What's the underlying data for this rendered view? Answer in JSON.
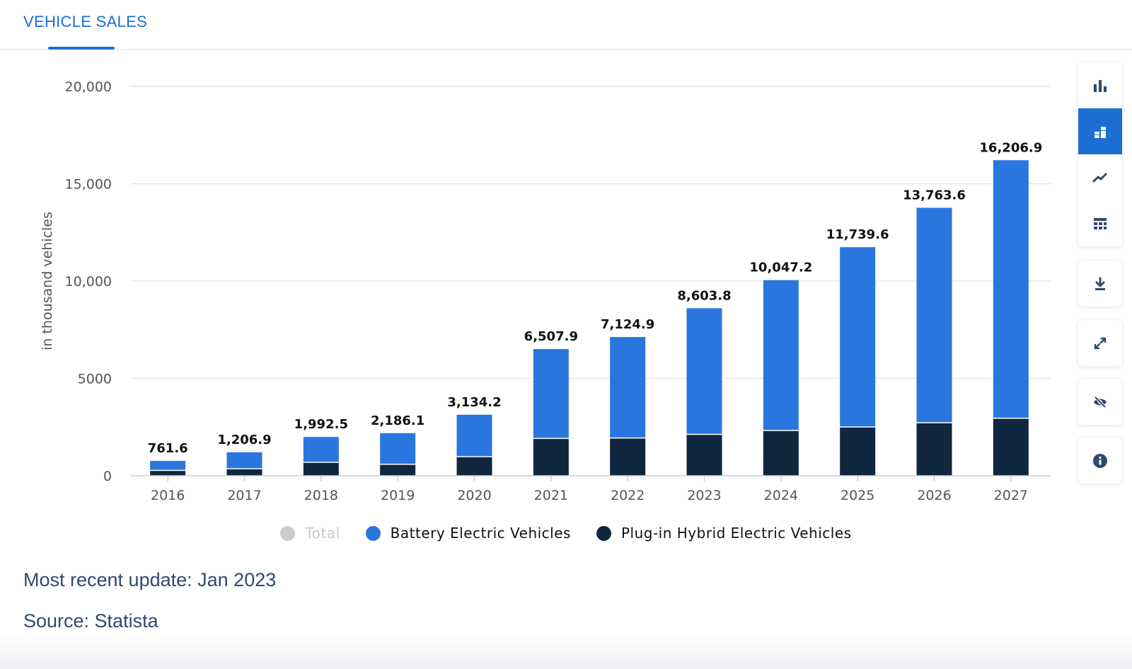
{
  "tab": {
    "label": "VEHICLE SALES"
  },
  "toolbar": {
    "chart_types": [
      {
        "name": "column-chart-icon",
        "active": false
      },
      {
        "name": "stacked-column-icon",
        "active": true
      },
      {
        "name": "line-chart-icon",
        "active": false
      },
      {
        "name": "table-icon",
        "active": false
      }
    ],
    "actions": [
      "download-icon",
      "fullscreen-icon",
      "hide-icon",
      "info-icon"
    ]
  },
  "colors": {
    "bev": "#2977de",
    "phev": "#11263f",
    "total": "#cccccc",
    "accent": "#1a6fd1"
  },
  "chart_data": {
    "type": "bar",
    "stacked": true,
    "categories": [
      "2016",
      "2017",
      "2018",
      "2019",
      "2020",
      "2021",
      "2022",
      "2023",
      "2024",
      "2025",
      "2026",
      "2027"
    ],
    "series": [
      {
        "name": "Battery Electric Vehicles",
        "color": "#2977de",
        "values": [
          515,
          877,
          1330,
          1626,
          2183,
          4620,
          5215,
          6505,
          7752,
          9263,
          11070,
          13280
        ]
      },
      {
        "name": "Plug-in Hybrid Electric Vehicles",
        "color": "#11263f",
        "values": [
          246.6,
          329.9,
          662.5,
          560.1,
          951.2,
          1887.9,
          1909.9,
          2098.8,
          2295.2,
          2476.6,
          2693.6,
          2926.9
        ]
      }
    ],
    "totals": [
      "761.6",
      "1,206.9",
      "1,992.5",
      "2,186.1",
      "3,134.2",
      "6,507.9",
      "7,124.9",
      "8,603.8",
      "10,047.2",
      "11,739.6",
      "13,763.6",
      "16,206.9"
    ],
    "ylabel": "in thousand vehicles",
    "ylim": [
      0,
      20000
    ],
    "yticks": [
      0,
      5000,
      10000,
      15000,
      20000
    ],
    "ytick_labels": [
      "0",
      "5000",
      "10,000",
      "15,000",
      "20,000"
    ],
    "grid": true,
    "legend": {
      "placement": "bottom",
      "items": [
        {
          "label": "Total",
          "color": "#cccccc",
          "inactive": true
        },
        {
          "label": "Battery Electric Vehicles",
          "color": "#2977de",
          "inactive": false
        },
        {
          "label": "Plug-in Hybrid Electric Vehicles",
          "color": "#11263f",
          "inactive": false
        }
      ]
    }
  },
  "footer": {
    "update": "Most recent update: Jan 2023",
    "source": "Source: Statista"
  }
}
